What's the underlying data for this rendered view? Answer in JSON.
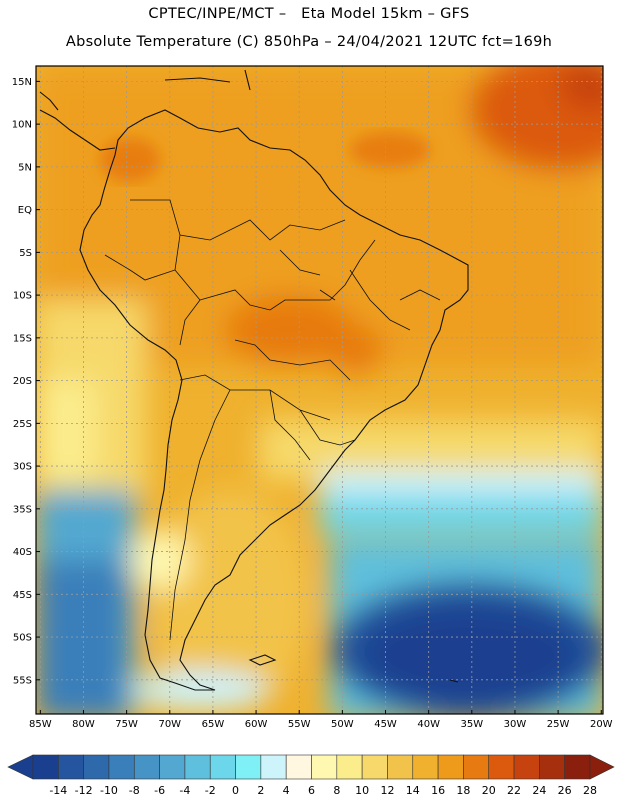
{
  "header": {
    "line1": "CPTEC/INPE/MCT –   Eta Model 15km – GFS",
    "line2": "Absolute Temperature (C) 850hPa – 24/04/2021 12UTC fct=169h"
  },
  "axes": {
    "lat_labels": [
      "15N",
      "10N",
      "5N",
      "EQ",
      "5S",
      "10S",
      "15S",
      "20S",
      "25S",
      "30S",
      "35S",
      "40S",
      "45S",
      "50S",
      "55S"
    ],
    "lon_labels": [
      "85W",
      "80W",
      "75W",
      "70W",
      "65W",
      "60W",
      "55W",
      "50W",
      "45W",
      "40W",
      "35W",
      "30W",
      "25W",
      "20W"
    ]
  },
  "colorbar": {
    "labels": [
      "-14",
      "-12",
      "-10",
      "-8",
      "-6",
      "-4",
      "-2",
      "0",
      "2",
      "4",
      "6",
      "8",
      "10",
      "12",
      "14",
      "16",
      "18",
      "20",
      "22",
      "24",
      "26",
      "28"
    ],
    "colors": [
      "#1b3f8f",
      "#24559e",
      "#2e6aab",
      "#3a7fba",
      "#4694c6",
      "#52a8d0",
      "#5ec0dc",
      "#6cd6ea",
      "#7ef0f6",
      "#cdf3fb",
      "#fff7e0",
      "#fff8b0",
      "#fbec8c",
      "#f6d96a",
      "#f2c34a",
      "#efb12e",
      "#ee9a1a",
      "#e77a10",
      "#dc5a0e",
      "#c6420e",
      "#a6300e",
      "#8a1f0e"
    ]
  },
  "style": {
    "land_outline": "#111111",
    "grid": "#9a9a9a"
  }
}
